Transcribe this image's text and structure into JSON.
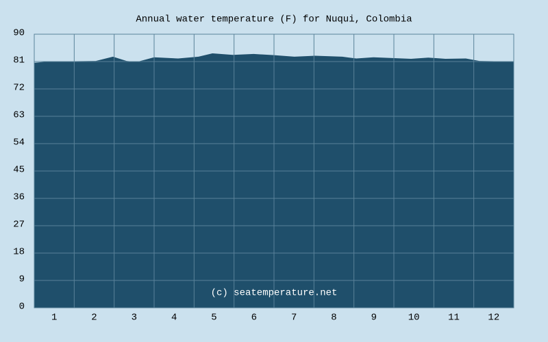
{
  "chart_data": {
    "type": "area",
    "title": "Annual water temperature (F) for Nuqui, Colombia",
    "watermark": "(c) seatemperature.net",
    "x": [
      0.5,
      0.84,
      2.04,
      2.47,
      2.81,
      3.07,
      3.5,
      4.1,
      4.61,
      4.96,
      5.47,
      5.99,
      6.5,
      7.01,
      7.53,
      8.21,
      8.56,
      8.99,
      9.93,
      10.36,
      10.79,
      11.3,
      11.64,
      12.5
    ],
    "values": [
      80.6,
      81,
      81.2,
      82.6,
      81.2,
      80.9,
      82.4,
      82,
      82.6,
      83.7,
      83.2,
      83.5,
      83.1,
      82.6,
      82.9,
      82.6,
      82,
      82.4,
      81.9,
      82.3,
      81.9,
      82,
      81.2,
      81
    ],
    "color": "#1f4f6b",
    "xlim": [
      0.5,
      12.5
    ],
    "xticks": [
      1,
      2,
      3,
      4,
      5,
      6,
      7,
      8,
      9,
      10,
      11,
      12
    ],
    "ylim": [
      0,
      90
    ],
    "yticks": [
      0,
      9,
      18,
      27,
      36,
      45,
      54,
      63,
      72,
      81,
      90
    ],
    "grid": true
  }
}
